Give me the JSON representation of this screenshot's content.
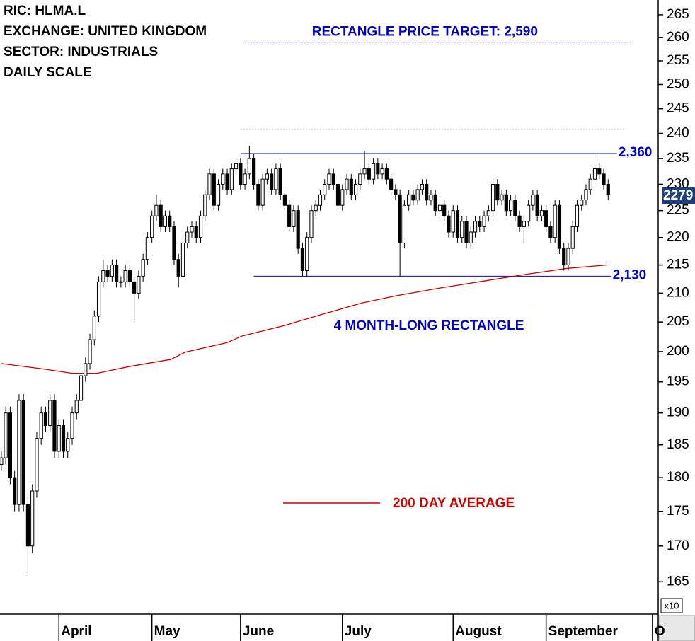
{
  "chart_data": {
    "type": "candlestick",
    "header": [
      "RIC: HLMA.L",
      "EXCHANGE: UNITED KINGDOM",
      "SECTOR: INDUSTRIALS",
      "DAILY SCALE"
    ],
    "up_color": "#ffffff",
    "down_color": "#000000",
    "candles": {
      "open": [
        182,
        183,
        190,
        180,
        176,
        192,
        176,
        170,
        178,
        186,
        190,
        188,
        192,
        184,
        188,
        184,
        186,
        190,
        192,
        196,
        198,
        202,
        206,
        212,
        214,
        213,
        215,
        212,
        212,
        214,
        212,
        210,
        213,
        216,
        220,
        224,
        226,
        222,
        224,
        222,
        216,
        213,
        219,
        221,
        222,
        220,
        224,
        228,
        232,
        226,
        230,
        232,
        229,
        233,
        234,
        230,
        232,
        235,
        230,
        226,
        231,
        232,
        229,
        233,
        228,
        226,
        222,
        225,
        218,
        214,
        220,
        225,
        226,
        228,
        230,
        232,
        230,
        226,
        229,
        231,
        228,
        230,
        232,
        233,
        231,
        234,
        232,
        233,
        231,
        229,
        228,
        219,
        226,
        228,
        227,
        229,
        230,
        227,
        228,
        225,
        226,
        224,
        221,
        225,
        220,
        223,
        219,
        221,
        223,
        222,
        224,
        225,
        230,
        227,
        228,
        225,
        227,
        224,
        222,
        223,
        226,
        228,
        224,
        225,
        222,
        220,
        226,
        218,
        215,
        218,
        222,
        226,
        227,
        229,
        231,
        233,
        232,
        230
      ],
      "high": [
        184,
        191,
        191,
        181,
        193,
        193,
        177,
        179,
        187,
        191,
        191,
        193,
        193,
        189,
        189,
        187,
        191,
        193,
        197,
        199,
        203,
        207,
        213,
        216,
        215,
        216,
        216,
        213,
        215,
        215,
        213,
        214,
        217,
        221,
        225,
        228,
        227,
        225,
        225,
        223,
        217,
        220,
        222,
        223,
        223,
        225,
        229,
        233,
        233,
        231,
        233,
        233,
        234,
        235,
        235,
        233,
        237.5,
        236,
        231,
        232,
        233,
        233,
        234,
        234,
        229,
        227,
        226,
        226,
        219,
        221,
        226,
        227,
        229,
        231,
        233,
        233,
        231,
        230,
        232,
        232,
        231,
        233,
        236.5,
        234,
        235,
        235,
        234,
        234,
        232,
        230,
        229,
        227,
        229,
        229,
        230,
        231,
        231,
        229,
        229,
        227,
        227,
        225,
        226,
        226,
        224,
        224,
        222,
        224,
        224,
        225,
        226,
        231,
        231,
        229,
        229,
        228,
        228,
        225,
        224,
        227,
        229,
        229,
        226,
        226,
        223,
        227,
        227,
        219,
        219,
        223,
        227,
        228,
        230,
        232,
        235.5,
        234,
        233,
        231
      ],
      "low": [
        181,
        182,
        179,
        175,
        175,
        175,
        166,
        169,
        177,
        185,
        187,
        187,
        183,
        183,
        183,
        183,
        185,
        189,
        191,
        195,
        197,
        201,
        205,
        211,
        212,
        212,
        211,
        211,
        211,
        211,
        205,
        209,
        212,
        215,
        219,
        223,
        221,
        221,
        221,
        215,
        211,
        212,
        218,
        220,
        219,
        219,
        223,
        227,
        225,
        225,
        229,
        228,
        228,
        232,
        229,
        229,
        231,
        229,
        225,
        225,
        230,
        228,
        228,
        227,
        225,
        221,
        221,
        217,
        213,
        213,
        219,
        224,
        225,
        227,
        229,
        229,
        225,
        225,
        228,
        227,
        227,
        229,
        231,
        230,
        230,
        231,
        231,
        230,
        228,
        227,
        213,
        218,
        225,
        226,
        226,
        228,
        226,
        226,
        224,
        224,
        223,
        220,
        220,
        219,
        219,
        218,
        218,
        220,
        221,
        221,
        223,
        224,
        226,
        226,
        224,
        224,
        223,
        221,
        219,
        222,
        225,
        223,
        223,
        221,
        219,
        219,
        217,
        214,
        214,
        217,
        221,
        225,
        226,
        228,
        230,
        231,
        229,
        227
      ],
      "close": [
        183,
        190,
        180,
        176,
        192,
        176,
        170,
        178,
        186,
        190,
        188,
        192,
        184,
        188,
        184,
        186,
        190,
        192,
        196,
        198,
        202,
        206,
        212,
        214,
        213,
        215,
        212,
        212,
        214,
        212,
        210,
        213,
        216,
        220,
        224,
        226,
        222,
        224,
        222,
        216,
        213,
        219,
        221,
        222,
        220,
        224,
        228,
        232,
        226,
        230,
        232,
        229,
        233,
        234,
        230,
        232,
        235,
        230,
        226,
        231,
        232,
        229,
        233,
        228,
        226,
        222,
        225,
        218,
        214,
        220,
        225,
        226,
        228,
        230,
        232,
        230,
        226,
        229,
        231,
        228,
        230,
        232,
        233,
        231,
        234,
        232,
        233,
        231,
        229,
        228,
        219,
        226,
        228,
        227,
        229,
        230,
        227,
        228,
        225,
        226,
        224,
        221,
        225,
        220,
        223,
        219,
        221,
        223,
        222,
        224,
        225,
        230,
        227,
        228,
        225,
        227,
        224,
        222,
        223,
        226,
        228,
        224,
        225,
        222,
        220,
        226,
        218,
        215,
        218,
        222,
        226,
        227,
        229,
        231,
        233,
        232,
        230,
        228
      ]
    },
    "series": [
      {
        "name": "200 DAY AVERAGE",
        "color": "#d00000",
        "x": [
          0,
          9.6,
          16,
          21.6,
          28.8,
          38.3,
          41.5,
          51,
          54.3,
          63.9,
          71.9,
          81.5,
          89.5,
          99,
          108.6,
          118.2,
          127.8,
          136.6
        ],
        "values": [
          198.0,
          197.1,
          196.4,
          196.4,
          197.5,
          198.7,
          199.9,
          201.5,
          202.6,
          204.4,
          206.2,
          208.3,
          209.6,
          210.9,
          212.1,
          213.3,
          214.4,
          215.0
        ]
      }
    ],
    "levels": [
      {
        "value": 236,
        "x": [
          54,
          139
        ],
        "label": "2,360",
        "color": "#0000cc",
        "style": "solid"
      },
      {
        "value": 213,
        "x": [
          57,
          137.7
        ],
        "label": "2,130",
        "color": "#0000cc",
        "style": "solid"
      },
      {
        "value": 259,
        "x": [
          55,
          142
        ],
        "label": "RECTANGLE PRICE TARGET: 2,590",
        "color": "#0000cc",
        "style": "dotted"
      },
      {
        "value": 240.8,
        "x": [
          54,
          141
        ],
        "color": "#bbbbbb",
        "style": "dotted"
      }
    ],
    "annotation": "4 MONTH-LONG RECTANGLE",
    "last_price": {
      "value": 227.9,
      "label": "2279"
    },
    "scale_note": "x10",
    "log_scale": true,
    "xlim": [
      -0.3,
      148.3
    ],
    "xticks": [
      {
        "value": 13,
        "label": "April"
      },
      {
        "value": 34,
        "label": "May"
      },
      {
        "value": 54,
        "label": "June"
      },
      {
        "value": 77,
        "label": "July"
      },
      {
        "value": 102,
        "label": "August"
      },
      {
        "value": 123,
        "label": "September"
      },
      {
        "value": 147,
        "label": "O"
      }
    ],
    "ylim": [
      160.6,
      268.3
    ],
    "yticks": [
      165,
      170,
      175,
      180,
      185,
      190,
      195,
      200,
      205,
      210,
      215,
      220,
      225,
      230,
      235,
      240,
      245,
      250,
      255,
      260,
      265
    ]
  }
}
